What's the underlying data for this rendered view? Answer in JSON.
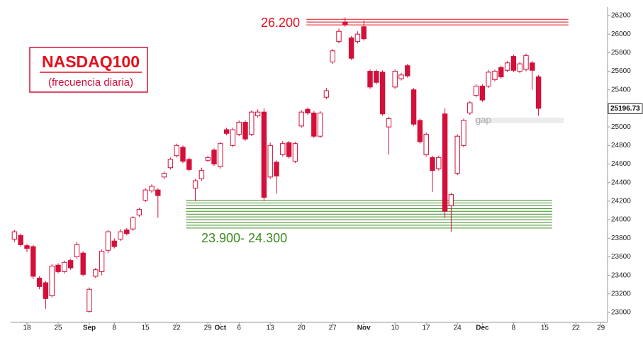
{
  "chart_data": {
    "type": "candlestick",
    "title": "NASDAQ100",
    "subtitle": "(frecuencia diaria)",
    "categories": [
      null,
      null,
      "18",
      null,
      null,
      null,
      null,
      "25",
      null,
      null,
      null,
      null,
      "Sep",
      null,
      null,
      null,
      "8",
      null,
      null,
      null,
      null,
      "15",
      null,
      null,
      null,
      null,
      "22",
      null,
      null,
      null,
      null,
      "29",
      null,
      "Oct",
      null,
      null,
      "6",
      null,
      null,
      null,
      null,
      "13",
      null,
      null,
      null,
      null,
      "20",
      null,
      null,
      null,
      null,
      "27",
      null,
      null,
      null,
      null,
      "Nov",
      null,
      null,
      null,
      null,
      "10",
      null,
      null,
      null,
      null,
      "17",
      null,
      null,
      null,
      null,
      "24",
      null,
      null,
      null,
      "Dec",
      null,
      null,
      null,
      null,
      "8",
      null,
      null,
      null,
      null,
      "15",
      null,
      null,
      null,
      null,
      "22",
      null,
      null,
      null,
      "29",
      null
    ],
    "open": [
      23790,
      23830,
      23720,
      23710,
      23370,
      23320,
      23180,
      23510,
      23440,
      23560,
      23600,
      23640,
      23010,
      23390,
      23440,
      23670,
      23770,
      23790,
      23890,
      23900,
      24050,
      24210,
      24310,
      24320,
      24460,
      24560,
      24690,
      24780,
      24650,
      24340,
      24440,
      24640,
      24750,
      24570,
      24970,
      24800,
      24920,
      25050,
      24920,
      25120,
      25160,
      24460,
      24620,
      24700,
      24830,
      24630,
      25010,
      25190,
      25150,
      24900,
      25320,
      25700,
      25920,
      26130,
      25960,
      25920,
      26080,
      25600,
      25600,
      25590,
      25000,
      25430,
      25520,
      25660,
      25400,
      25070,
      24700,
      24670,
      24550,
      25140,
      24150,
      24500,
      24800,
      25150,
      25340,
      25440,
      25440,
      25510,
      25640,
      25610,
      25760,
      25600,
      25620,
      25690,
      25540,
      null,
      null,
      null,
      null,
      null,
      null,
      null,
      null,
      null,
      null,
      null
    ],
    "high": [
      23890,
      23850,
      23740,
      23730,
      23390,
      23340,
      23520,
      23530,
      23560,
      23580,
      23760,
      23660,
      23270,
      23480,
      23680,
      23890,
      23800,
      23900,
      23910,
      24040,
      24130,
      24340,
      24380,
      24340,
      24520,
      24670,
      24820,
      24800,
      24670,
      24440,
      24560,
      24690,
      24770,
      24840,
      24990,
      24990,
      25070,
      25070,
      25180,
      25190,
      25200,
      24830,
      24640,
      24850,
      24850,
      24840,
      25180,
      25210,
      25170,
      25170,
      25420,
      25840,
      26060,
      26180,
      25980,
      26030,
      26150,
      25620,
      25620,
      25610,
      25110,
      25620,
      25580,
      25680,
      25420,
      25090,
      24940,
      24690,
      24690,
      25200,
      24290,
      24920,
      25090,
      25280,
      25460,
      25460,
      25610,
      25620,
      25660,
      25710,
      25780,
      25700,
      25790,
      25710,
      25560,
      null,
      null,
      null,
      null,
      null,
      null,
      null,
      null,
      null,
      null,
      null
    ],
    "low": [
      23760,
      23710,
      23650,
      23360,
      23250,
      23040,
      23160,
      23420,
      23420,
      23460,
      23580,
      23390,
      23000,
      23370,
      23400,
      23640,
      23690,
      23770,
      23830,
      23880,
      24030,
      24190,
      24290,
      24020,
      24440,
      24540,
      24670,
      24610,
      24520,
      24200,
      24420,
      24620,
      24580,
      24550,
      24910,
      24780,
      24900,
      24850,
      24900,
      25100,
      24200,
      24440,
      24280,
      24680,
      24660,
      24610,
      24990,
      25130,
      24880,
      24880,
      25300,
      25680,
      25900,
      26080,
      25720,
      25900,
      25930,
      25410,
      25460,
      25120,
      24700,
      25410,
      25500,
      25530,
      25010,
      24820,
      24680,
      24300,
      24530,
      24020,
      23870,
      24480,
      24780,
      25130,
      25320,
      25270,
      25420,
      25490,
      25520,
      25590,
      25590,
      25580,
      25600,
      25400,
      25120,
      null,
      null,
      null,
      null,
      null,
      null,
      null,
      null,
      null,
      null,
      null
    ],
    "close": [
      23870,
      23730,
      23690,
      23390,
      23280,
      23150,
      23500,
      23440,
      23540,
      23480,
      23730,
      23410,
      23250,
      23460,
      23660,
      23870,
      23710,
      23870,
      23850,
      24020,
      24110,
      24320,
      24360,
      24260,
      24500,
      24650,
      24800,
      24630,
      24540,
      24420,
      24530,
      24670,
      24600,
      24820,
      24930,
      24970,
      25050,
      24870,
      25160,
      25160,
      24240,
      24800,
      24470,
      24820,
      24680,
      24820,
      25160,
      25150,
      24900,
      25150,
      25390,
      25820,
      26030,
      26100,
      25740,
      26000,
      25950,
      25430,
      25480,
      25140,
      25090,
      25600,
      25560,
      25550,
      25030,
      24840,
      24920,
      24530,
      24670,
      24090,
      24270,
      24900,
      25070,
      25260,
      25440,
      25290,
      25590,
      25600,
      25540,
      25690,
      25610,
      25680,
      25770,
      25610,
      25200,
      null,
      null,
      null,
      null,
      null,
      null,
      null,
      null,
      null,
      null,
      null
    ],
    "up_color": "#ffffff",
    "down_color": "#d2103a",
    "ylim": [
      22900,
      26300
    ],
    "yticks": [
      23000,
      23200,
      23400,
      23600,
      23800,
      24000,
      24200,
      24400,
      24600,
      24800,
      25000,
      25200,
      25400,
      25600,
      25800,
      26000,
      26200
    ],
    "last_price": 25196.73,
    "levels": [
      {
        "text": "26.200",
        "color": "#e3101e",
        "values": [
          26160,
          26130,
          26100
        ]
      },
      {
        "text": "23.900- 24.300",
        "color": "#3b8a22",
        "values": [
          24210,
          24180,
          24150,
          24120,
          24090,
          24060,
          24030,
          24000,
          23970,
          23940,
          23910
        ]
      }
    ],
    "gap": {
      "text": "gap",
      "low": 25040,
      "high": 25100
    }
  }
}
